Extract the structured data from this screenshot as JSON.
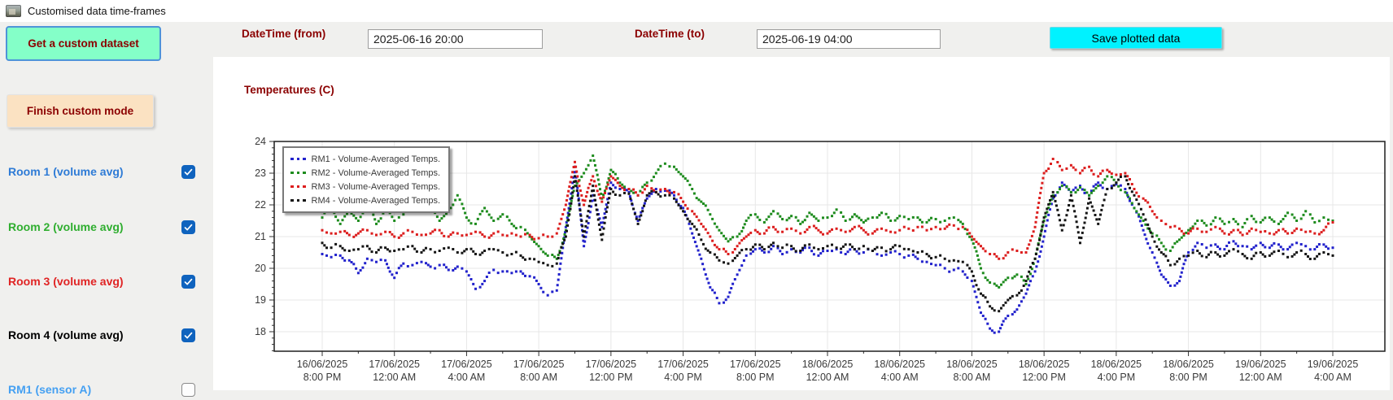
{
  "window": {
    "title": "Customised data time-frames"
  },
  "toolbar": {
    "get_dataset_label": "Get a custom dataset",
    "finish_custom_label": "Finish custom mode",
    "save_plotted_label": "Save plotted data",
    "datetime_from_label": "DateTime (from)",
    "datetime_from_value": "2025-06-16 20:00",
    "datetime_to_label": "DateTime (to)",
    "datetime_to_value": "2025-06-19 04:00"
  },
  "sidebar": {
    "items": [
      {
        "label": "Room 1 (volume avg)",
        "color": "#2e7bd6",
        "checked": true
      },
      {
        "label": "Room 2 (volume avg)",
        "color": "#2fae2f",
        "checked": true
      },
      {
        "label": "Room 3 (volume avg)",
        "color": "#e02424",
        "checked": true
      },
      {
        "label": "Room 4 (volume avg)",
        "color": "#000000",
        "checked": true
      },
      {
        "label": "RM1 (sensor A)",
        "color": "#45a0f2",
        "checked": false
      }
    ],
    "checkbox_checked_color": "#0f63be"
  },
  "chart_data": {
    "type": "scatter",
    "title": "Temperatures (C)",
    "x_unit": "hours after 2025-06-16 20:00",
    "sample_interval_hours": 0.5,
    "ylim": [
      17.4,
      24
    ],
    "yticks": [
      18,
      19,
      20,
      21,
      22,
      23,
      24
    ],
    "grid": true,
    "legend_position": "top-left",
    "xtick_hours": [
      0,
      4,
      8,
      12,
      16,
      20,
      24,
      28,
      32,
      36,
      40,
      44,
      48,
      52,
      56
    ],
    "xtick_labels": [
      [
        "16/06/2025",
        "8:00 PM"
      ],
      [
        "17/06/2025",
        "12:00 AM"
      ],
      [
        "17/06/2025",
        "4:00 AM"
      ],
      [
        "17/06/2025",
        "8:00 AM"
      ],
      [
        "17/06/2025",
        "12:00 PM"
      ],
      [
        "17/06/2025",
        "4:00 PM"
      ],
      [
        "17/06/2025",
        "8:00 PM"
      ],
      [
        "18/06/2025",
        "12:00 AM"
      ],
      [
        "18/06/2025",
        "4:00 AM"
      ],
      [
        "18/06/2025",
        "8:00 AM"
      ],
      [
        "18/06/2025",
        "12:00 PM"
      ],
      [
        "18/06/2025",
        "4:00 PM"
      ],
      [
        "18/06/2025",
        "8:00 PM"
      ],
      [
        "19/06/2025",
        "12:00 AM"
      ],
      [
        "19/06/2025",
        "4:00 AM"
      ]
    ],
    "series": [
      {
        "name": "RM1 - Volume-Averaged Temps.",
        "color": "#2222cc",
        "values": [
          20.45,
          20.35,
          20.4,
          20.25,
          19.85,
          20.3,
          20.2,
          20.25,
          19.7,
          20.15,
          20.1,
          20.2,
          20.05,
          20.1,
          19.95,
          20.05,
          19.9,
          19.35,
          19.6,
          19.95,
          19.9,
          19.85,
          19.9,
          19.75,
          19.5,
          19.15,
          19.3,
          21.3,
          23.2,
          20.7,
          22.3,
          21.3,
          22.7,
          22.5,
          22.4,
          21.5,
          22.2,
          22.5,
          22.45,
          22.3,
          21.9,
          21.1,
          20.3,
          19.4,
          18.9,
          19.1,
          19.8,
          20.4,
          20.6,
          20.5,
          20.7,
          20.45,
          20.6,
          20.5,
          20.65,
          20.4,
          20.55,
          20.6,
          20.45,
          20.6,
          20.5,
          20.55,
          20.4,
          20.5,
          20.45,
          20.4,
          20.3,
          20.2,
          20.1,
          20.0,
          19.95,
          19.9,
          19.6,
          18.6,
          18.1,
          18.0,
          18.5,
          18.7,
          19.2,
          19.9,
          21.0,
          22.2,
          22.7,
          22.4,
          22.6,
          22.3,
          22.7,
          22.5,
          22.65,
          22.5,
          21.9,
          21.2,
          20.5,
          19.8,
          19.45,
          19.6,
          20.5,
          20.8,
          20.65,
          20.75,
          20.6,
          20.85,
          20.7,
          20.6,
          20.8,
          20.65,
          20.75,
          20.6,
          20.8,
          20.7,
          20.6,
          20.75,
          20.65
        ]
      },
      {
        "name": "RM2 - Volume-Averaged Temps.",
        "color": "#1e8c1e",
        "values": [
          21.6,
          22.0,
          21.4,
          21.8,
          21.5,
          22.1,
          21.4,
          21.9,
          21.5,
          21.7,
          22.3,
          22.5,
          21.9,
          21.5,
          21.8,
          22.3,
          21.6,
          21.4,
          21.9,
          21.5,
          21.7,
          21.4,
          21.3,
          21.0,
          20.7,
          20.4,
          20.3,
          21.2,
          22.6,
          23.0,
          23.55,
          22.2,
          23.1,
          22.7,
          22.5,
          22.3,
          22.7,
          23.0,
          23.3,
          23.2,
          22.9,
          22.5,
          22.1,
          21.7,
          21.2,
          20.85,
          21.0,
          21.5,
          21.7,
          21.45,
          21.8,
          21.55,
          21.65,
          21.4,
          21.75,
          21.5,
          21.6,
          21.85,
          21.5,
          21.7,
          21.45,
          21.6,
          21.75,
          21.5,
          21.65,
          21.55,
          21.6,
          21.45,
          21.55,
          21.5,
          21.6,
          21.4,
          20.9,
          20.0,
          19.55,
          19.4,
          19.7,
          19.8,
          19.5,
          20.3,
          21.5,
          22.3,
          22.6,
          22.4,
          22.55,
          22.3,
          22.6,
          22.9,
          22.7,
          22.4,
          21.9,
          21.5,
          21.1,
          20.8,
          20.55,
          20.9,
          21.2,
          21.5,
          21.35,
          21.6,
          21.4,
          21.55,
          21.3,
          21.65,
          21.45,
          21.6,
          21.4,
          21.75,
          21.5,
          21.8,
          21.45,
          21.6,
          21.5
        ]
      },
      {
        "name": "RM3 - Volume-Averaged Temps.",
        "color": "#dc1e1e",
        "values": [
          21.2,
          21.1,
          21.15,
          21.05,
          21.1,
          21.2,
          21.05,
          21.15,
          21.0,
          21.1,
          21.15,
          21.05,
          21.1,
          21.2,
          21.0,
          21.1,
          21.05,
          21.15,
          21.0,
          21.1,
          21.05,
          21.1,
          21.0,
          21.05,
          20.95,
          21.0,
          21.1,
          22.0,
          23.35,
          22.0,
          22.9,
          22.1,
          22.9,
          22.6,
          22.5,
          22.3,
          22.6,
          22.4,
          22.5,
          22.4,
          22.1,
          21.8,
          21.4,
          21.0,
          20.6,
          20.45,
          20.7,
          21.0,
          21.2,
          21.1,
          21.3,
          21.15,
          21.25,
          21.1,
          21.3,
          21.2,
          21.1,
          21.25,
          21.15,
          21.3,
          21.2,
          21.1,
          21.25,
          21.15,
          21.2,
          21.25,
          21.3,
          21.2,
          21.3,
          21.25,
          21.35,
          21.3,
          21.0,
          20.7,
          20.45,
          20.3,
          20.5,
          20.55,
          20.5,
          21.3,
          23.0,
          23.45,
          23.1,
          23.25,
          23.0,
          23.2,
          22.9,
          23.1,
          22.95,
          23.0,
          22.5,
          22.2,
          21.8,
          21.5,
          21.3,
          21.25,
          21.1,
          21.25,
          21.15,
          21.3,
          21.1,
          21.2,
          21.05,
          21.25,
          21.15,
          21.1,
          21.2,
          21.1,
          21.25,
          21.15,
          21.1,
          21.2,
          21.45
        ]
      },
      {
        "name": "RM4 - Volume-Averaged Temps.",
        "color": "#141414",
        "values": [
          20.8,
          20.65,
          20.7,
          20.55,
          20.6,
          20.7,
          20.5,
          20.65,
          20.55,
          20.6,
          20.7,
          20.5,
          20.6,
          20.55,
          20.65,
          20.5,
          20.6,
          20.45,
          20.55,
          20.6,
          20.5,
          20.45,
          20.4,
          20.3,
          20.2,
          20.1,
          20.15,
          21.0,
          22.9,
          21.0,
          22.6,
          20.9,
          22.5,
          22.3,
          22.35,
          21.4,
          22.3,
          22.4,
          22.3,
          22.2,
          21.8,
          21.4,
          20.9,
          20.5,
          20.25,
          20.15,
          20.4,
          20.6,
          20.75,
          20.6,
          20.8,
          20.65,
          20.7,
          20.55,
          20.75,
          20.6,
          20.7,
          20.65,
          20.75,
          20.6,
          20.7,
          20.55,
          20.65,
          20.6,
          20.7,
          20.6,
          20.5,
          20.45,
          20.35,
          20.3,
          20.25,
          20.2,
          19.9,
          19.2,
          18.8,
          18.65,
          19.0,
          19.15,
          19.6,
          20.3,
          21.6,
          22.4,
          21.2,
          22.3,
          20.8,
          22.2,
          21.4,
          22.5,
          22.7,
          22.9,
          22.3,
          21.7,
          21.0,
          20.5,
          20.1,
          20.3,
          20.4,
          20.55,
          20.35,
          20.5,
          20.4,
          20.6,
          20.45,
          20.3,
          20.5,
          20.4,
          20.55,
          20.35,
          20.5,
          20.45,
          20.3,
          20.5,
          20.4
        ]
      }
    ]
  }
}
